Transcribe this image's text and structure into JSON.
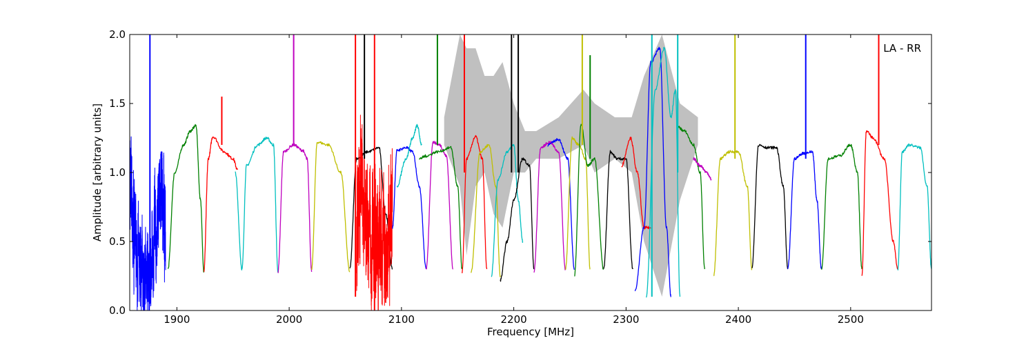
{
  "chart_data": {
    "type": "line",
    "title": "",
    "annotation": "LA - RR",
    "xlabel": "Frequency [MHz]",
    "ylabel": "Amplitude [arbitrary units]",
    "xlim": [
      1858,
      2572
    ],
    "ylim": [
      0.0,
      2.0
    ],
    "xticks": [
      1900,
      2000,
      2100,
      2200,
      2300,
      2400,
      2500
    ],
    "xtick_labels": [
      "1900",
      "2000",
      "2100",
      "2200",
      "2300",
      "2400",
      "2500"
    ],
    "yticks": [
      0.0,
      0.5,
      1.0,
      1.5,
      2.0
    ],
    "ytick_labels": [
      "0.0",
      "0.5",
      "1.0",
      "1.5",
      "2.0"
    ],
    "grid": false,
    "background_color": "#c0c0c0",
    "background_bands": [
      {
        "x": [
          2138,
          2152,
          2158,
          2166,
          2174,
          2182,
          2190,
          2200,
          2210,
          2220,
          2240,
          2262,
          2272,
          2290,
          2305,
          2316,
          2332,
          2348,
          2364
        ],
        "y_low": [
          1.2,
          0.9,
          0.4,
          0.9,
          1.0,
          0.7,
          0.6,
          1.0,
          1.0,
          1.1,
          1.1,
          1.2,
          1.0,
          1.1,
          1.0,
          0.5,
          0.1,
          0.8,
          1.2
        ],
        "y_high": [
          1.4,
          2.0,
          1.9,
          1.9,
          1.7,
          1.7,
          1.8,
          1.5,
          1.3,
          1.3,
          1.4,
          1.6,
          1.5,
          1.4,
          1.4,
          1.7,
          2.0,
          1.5,
          1.4
        ]
      }
    ],
    "series": [
      {
        "color": "#0000ff",
        "x": [
          1858,
          1862,
          1868,
          1874,
          1880,
          1886,
          1890
        ],
        "y": [
          0.9,
          0.5,
          0.3,
          0.2,
          0.5,
          0.9,
          0.6
        ],
        "noise": 0.3
      },
      {
        "color": "#008000",
        "x": [
          1892,
          1898,
          1906,
          1912,
          1917,
          1921,
          1924
        ],
        "y": [
          0.3,
          1.0,
          1.2,
          1.3,
          1.34,
          0.8,
          0.28
        ]
      },
      {
        "color": "#ff0000",
        "x": [
          1924,
          1928,
          1932,
          1942,
          1950,
          1954
        ],
        "y": [
          0.28,
          1.1,
          1.26,
          1.15,
          1.1,
          1.02
        ]
      },
      {
        "color": "#00bfbf",
        "x": [
          1952,
          1958,
          1962,
          1972,
          1980,
          1986,
          1990
        ],
        "y": [
          1.0,
          0.3,
          1.05,
          1.2,
          1.25,
          1.2,
          0.28
        ]
      },
      {
        "color": "#bf00bf",
        "x": [
          1990,
          1995,
          2004,
          2012,
          2016,
          2020
        ],
        "y": [
          0.28,
          1.15,
          1.2,
          1.16,
          1.1,
          0.28
        ]
      },
      {
        "color": "#bfbf00",
        "x": [
          2020,
          2025,
          2035,
          2046,
          2054
        ],
        "y": [
          0.3,
          1.22,
          1.2,
          1.0,
          0.28
        ]
      },
      {
        "color": "#000000",
        "x": [
          2054,
          2060,
          2070,
          2080,
          2086,
          2092
        ],
        "y": [
          0.3,
          1.1,
          1.15,
          1.18,
          0.7,
          0.3
        ]
      },
      {
        "color": "#ff0000",
        "x": [
          2060,
          2064,
          2070,
          2076,
          2082,
          2088,
          2092
        ],
        "y": [
          0.6,
          1.0,
          0.5,
          0.4,
          0.6,
          0.5,
          0.8
        ],
        "noise": 0.35
      },
      {
        "color": "#0000ff",
        "x": [
          2092,
          2096,
          2104,
          2110,
          2116,
          2122
        ],
        "y": [
          0.6,
          1.16,
          1.18,
          1.15,
          0.9,
          0.3
        ]
      },
      {
        "color": "#00bfbf",
        "x": [
          2096,
          2104,
          2110,
          2114,
          2118
        ],
        "y": [
          0.9,
          1.1,
          1.25,
          1.34,
          1.2
        ]
      },
      {
        "color": "#bf00bf",
        "x": [
          2122,
          2128,
          2134,
          2140,
          2146
        ],
        "y": [
          0.3,
          1.22,
          1.2,
          1.12,
          0.3
        ]
      },
      {
        "color": "#008000",
        "x": [
          2116,
          2122,
          2132,
          2144,
          2150,
          2154
        ],
        "y": [
          1.1,
          1.12,
          1.15,
          1.18,
          0.9,
          0.3
        ]
      },
      {
        "color": "#ff0000",
        "x": [
          2154,
          2158,
          2166,
          2172,
          2176
        ],
        "y": [
          0.28,
          1.1,
          1.26,
          1.1,
          0.3
        ]
      },
      {
        "color": "#bfbf00",
        "x": [
          2162,
          2170,
          2178,
          2184,
          2188
        ],
        "y": [
          0.28,
          1.15,
          1.2,
          0.9,
          0.25
        ]
      },
      {
        "color": "#00bfbf",
        "x": [
          2180,
          2186,
          2194,
          2200,
          2204,
          2208
        ],
        "y": [
          0.25,
          0.95,
          1.15,
          1.2,
          0.8,
          0.5
        ]
      },
      {
        "color": "#000000",
        "x": [
          2188,
          2194,
          2200,
          2208,
          2214,
          2218
        ],
        "y": [
          0.22,
          0.5,
          0.8,
          1.1,
          1.05,
          0.3
        ]
      },
      {
        "color": "#bf00bf",
        "x": [
          2218,
          2224,
          2232,
          2240,
          2246
        ],
        "y": [
          0.28,
          1.18,
          1.22,
          1.15,
          0.3
        ]
      },
      {
        "color": "#0000ff",
        "x": [
          2230,
          2240,
          2248,
          2254
        ],
        "y": [
          1.2,
          1.24,
          1.1,
          0.3
        ]
      },
      {
        "color": "#bfbf00",
        "x": [
          2246,
          2252,
          2258,
          2264,
          2268
        ],
        "y": [
          0.3,
          1.25,
          1.2,
          1.1,
          0.3
        ]
      },
      {
        "color": "#008000",
        "x": [
          2254,
          2260,
          2266,
          2272,
          2280
        ],
        "y": [
          0.25,
          1.35,
          1.05,
          1.1,
          0.3
        ]
      },
      {
        "color": "#000000",
        "x": [
          2280,
          2286,
          2292,
          2300,
          2306
        ],
        "y": [
          0.3,
          1.15,
          1.1,
          1.1,
          0.3
        ]
      },
      {
        "color": "#ff0000",
        "x": [
          2296,
          2304,
          2310,
          2316,
          2322
        ],
        "y": [
          1.05,
          1.25,
          1.0,
          0.6,
          0.6
        ]
      },
      {
        "color": "#0000ff",
        "x": [
          2308,
          2316,
          2322,
          2330,
          2336,
          2340
        ],
        "y": [
          0.15,
          0.6,
          1.8,
          1.9,
          0.6,
          0.1
        ]
      },
      {
        "color": "#00bfbf",
        "x": [
          2318,
          2326,
          2334,
          2340,
          2344,
          2348
        ],
        "y": [
          0.1,
          1.6,
          1.9,
          1.4,
          1.6,
          0.1
        ]
      },
      {
        "color": "#008000",
        "x": [
          2346,
          2352,
          2360,
          2366,
          2370
        ],
        "y": [
          1.33,
          1.3,
          1.2,
          1.0,
          0.3
        ]
      },
      {
        "color": "#bf00bf",
        "x": [
          2360,
          2366,
          2372,
          2376
        ],
        "y": [
          1.1,
          1.05,
          1.0,
          0.95
        ]
      },
      {
        "color": "#bfbf00",
        "x": [
          2378,
          2384,
          2392,
          2400,
          2408,
          2412
        ],
        "y": [
          0.25,
          1.1,
          1.15,
          1.15,
          0.9,
          0.3
        ]
      },
      {
        "color": "#000000",
        "x": [
          2412,
          2418,
          2426,
          2434,
          2440,
          2444
        ],
        "y": [
          0.3,
          1.2,
          1.18,
          1.18,
          0.9,
          0.3
        ]
      },
      {
        "color": "#0000ff",
        "x": [
          2444,
          2450,
          2458,
          2466,
          2470,
          2474
        ],
        "y": [
          0.3,
          1.1,
          1.14,
          1.15,
          0.8,
          0.3
        ]
      },
      {
        "color": "#008000",
        "x": [
          2474,
          2480,
          2490,
          2500,
          2506,
          2510
        ],
        "y": [
          0.3,
          1.1,
          1.12,
          1.2,
          1.0,
          0.3
        ]
      },
      {
        "color": "#ff0000",
        "x": [
          2510,
          2514,
          2520,
          2530,
          2538,
          2542
        ],
        "y": [
          0.25,
          1.3,
          1.25,
          1.1,
          0.5,
          0.3
        ]
      },
      {
        "color": "#00bfbf",
        "x": [
          2542,
          2546,
          2552,
          2562,
          2568,
          2572
        ],
        "y": [
          0.3,
          1.15,
          1.2,
          1.18,
          0.9,
          0.3
        ]
      }
    ],
    "spikes": [
      {
        "color": "#0000ff",
        "x": 1876,
        "y_low": 0.05,
        "y_high": 2.0
      },
      {
        "color": "#ff0000",
        "x": 1940,
        "y_low": 1.2,
        "y_high": 1.55
      },
      {
        "color": "#bf00bf",
        "x": 2004,
        "y_low": 1.2,
        "y_high": 2.0
      },
      {
        "color": "#ff0000",
        "x": 2059,
        "y_low": 0.1,
        "y_high": 2.0
      },
      {
        "color": "#000000",
        "x": 2067,
        "y_low": 1.1,
        "y_high": 2.0
      },
      {
        "color": "#ff0000",
        "x": 2076,
        "y_low": 0.0,
        "y_high": 2.0
      },
      {
        "color": "#008000",
        "x": 2132,
        "y_low": 1.2,
        "y_high": 2.0
      },
      {
        "color": "#ff0000",
        "x": 2156,
        "y_low": 1.0,
        "y_high": 2.0
      },
      {
        "color": "#000000",
        "x": 2198,
        "y_low": 1.0,
        "y_high": 2.0
      },
      {
        "color": "#000000",
        "x": 2204,
        "y_low": 1.0,
        "y_high": 2.0
      },
      {
        "color": "#bfbf00",
        "x": 2261,
        "y_low": 1.2,
        "y_high": 2.0
      },
      {
        "color": "#008000",
        "x": 2268,
        "y_low": 1.1,
        "y_high": 1.85
      },
      {
        "color": "#00bfbf",
        "x": 2323,
        "y_low": 0.1,
        "y_high": 2.0
      },
      {
        "color": "#00bfbf",
        "x": 2346,
        "y_low": 1.0,
        "y_high": 2.0
      },
      {
        "color": "#bfbf00",
        "x": 2397,
        "y_low": 1.1,
        "y_high": 2.0
      },
      {
        "color": "#0000ff",
        "x": 2460,
        "y_low": 1.1,
        "y_high": 2.0
      },
      {
        "color": "#ff0000",
        "x": 2525,
        "y_low": 1.2,
        "y_high": 2.0
      }
    ]
  }
}
